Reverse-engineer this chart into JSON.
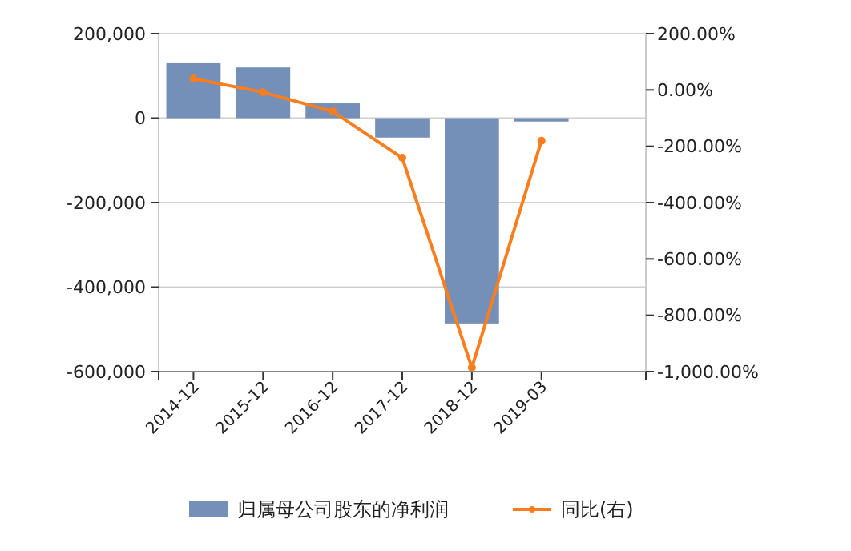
{
  "chart_data": {
    "type": "bar",
    "categories": [
      "2014-12",
      "2015-12",
      "2016-12",
      "2017-12",
      "2018-12",
      "2019-03"
    ],
    "series": [
      {
        "name": "归属母公司股东的净利润",
        "color": "#7590b8",
        "values": [
          130000,
          120000,
          35000,
          -46000,
          -486000,
          -8000
        ]
      },
      {
        "name": "同比(右)",
        "type": "line",
        "axis": "y2",
        "color": "#fa7d1e",
        "values": [
          40,
          -8,
          -76,
          -241,
          -986,
          -180
        ]
      }
    ],
    "ylim": [
      -600000,
      200000
    ],
    "yticks": [
      {
        "value": 200000,
        "label": "200,000"
      },
      {
        "value": 0,
        "label": "0"
      },
      {
        "value": -200000,
        "label": "-200,000"
      },
      {
        "value": -400000,
        "label": "-400,000"
      },
      {
        "value": -600000,
        "label": "-600,000"
      }
    ],
    "y2lim": [
      -1000,
      200
    ],
    "y2ticks": [
      {
        "value": 200,
        "label": "200.00%"
      },
      {
        "value": 0,
        "label": "0.00%"
      },
      {
        "value": -200,
        "label": "-200.00%"
      },
      {
        "value": -400,
        "label": "-400.00%"
      },
      {
        "value": -600,
        "label": "-600.00%"
      },
      {
        "value": -800,
        "label": "-800.00%"
      },
      {
        "value": -1000,
        "label": "-1,000.00%"
      }
    ],
    "grid": "y",
    "legend": "bottom",
    "marker": "circle"
  }
}
